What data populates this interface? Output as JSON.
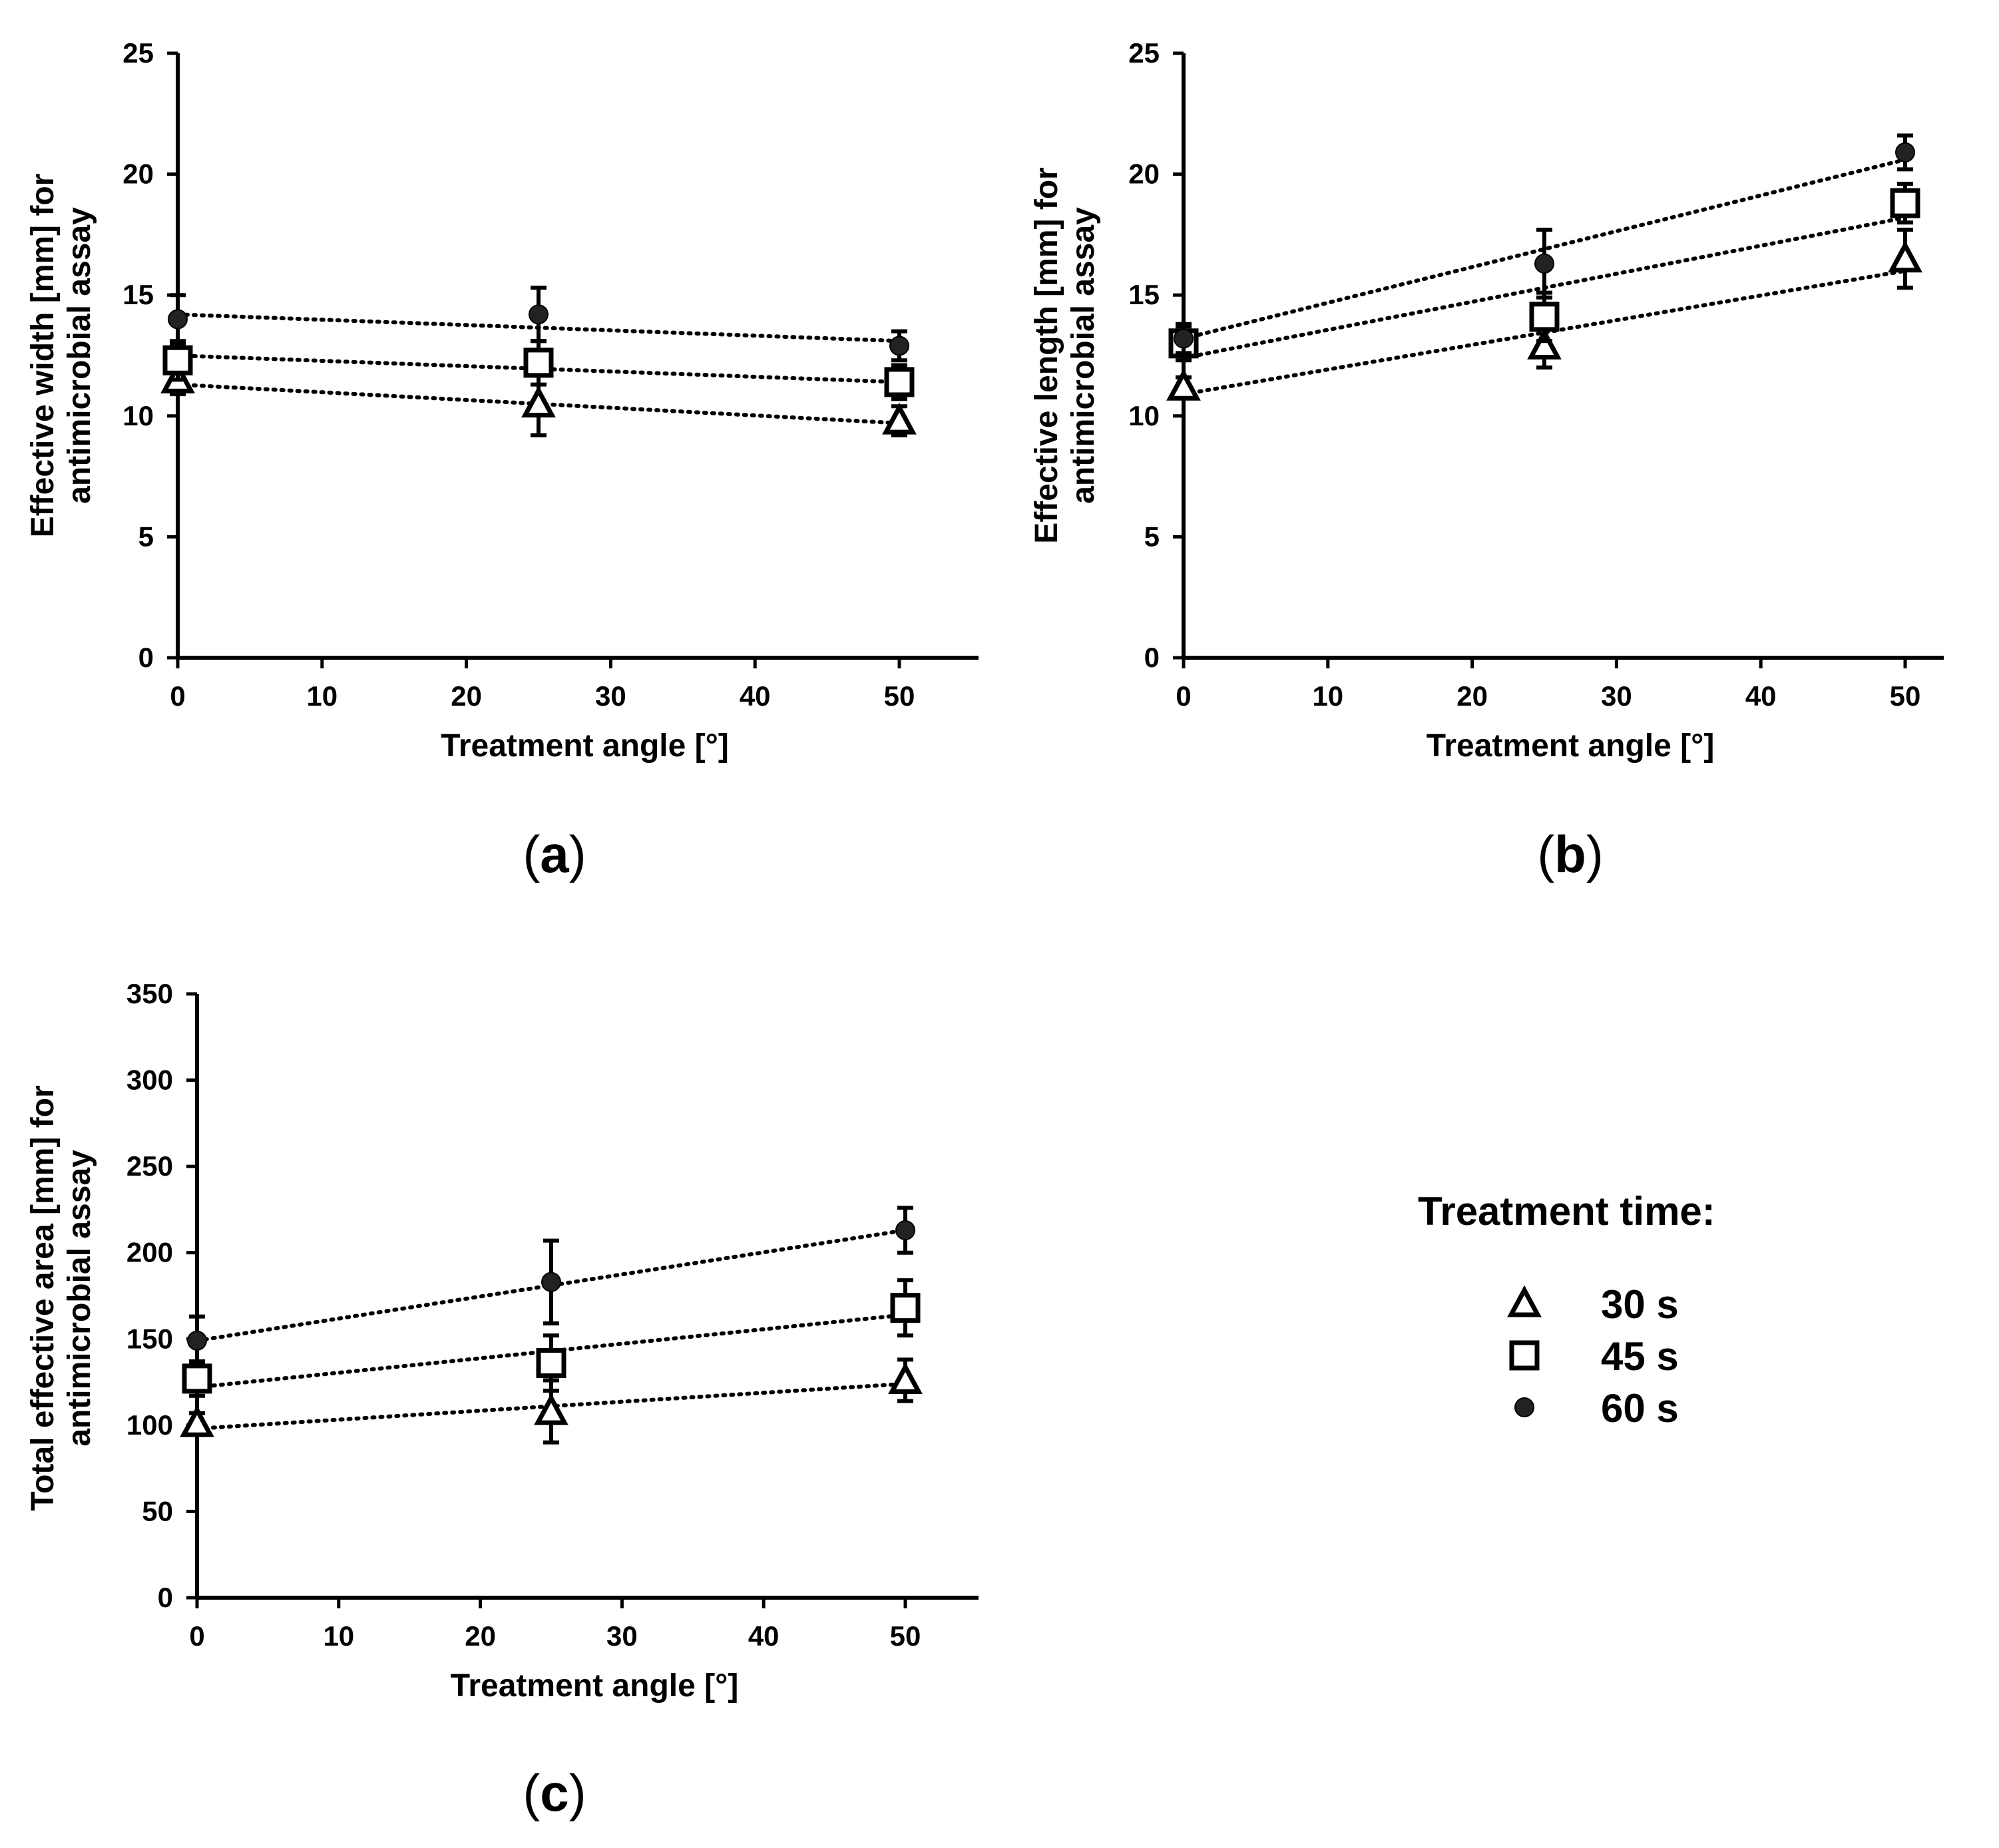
{
  "chart_data": [
    {
      "type": "scatter",
      "panel": "a",
      "panel_label_open": "(",
      "panel_label_letter": "a",
      "panel_label_close": ")",
      "xlabel": "Treatment angle [°]",
      "ylabel_line1": "Effective width [mm] for",
      "ylabel_line2": "antimicrobial assay",
      "xlim": [
        0,
        55
      ],
      "ylim": [
        0,
        25
      ],
      "xticks": [
        0,
        10,
        20,
        30,
        40,
        50
      ],
      "yticks": [
        0,
        5,
        10,
        15,
        20,
        25
      ],
      "series": [
        {
          "name": "30 s",
          "marker": "triangle",
          "x": [
            0,
            25,
            50
          ],
          "y": [
            11.5,
            10.5,
            9.8
          ],
          "err": [
            0.6,
            1.3,
            0.6
          ],
          "trend": [
            11.3,
            9.7
          ]
        },
        {
          "name": "45 s",
          "marker": "square",
          "x": [
            0,
            25,
            50
          ],
          "y": [
            12.3,
            12.2,
            11.4
          ],
          "err": [
            0.8,
            0.9,
            0.7
          ],
          "trend": [
            12.5,
            11.4
          ]
        },
        {
          "name": "60 s",
          "marker": "circle",
          "x": [
            0,
            25,
            50
          ],
          "y": [
            14.0,
            14.2,
            12.9
          ],
          "err": [
            1.0,
            1.1,
            0.6
          ],
          "trend": [
            14.2,
            13.1
          ]
        }
      ]
    },
    {
      "type": "scatter",
      "panel": "b",
      "panel_label_open": "(",
      "panel_label_letter": "b",
      "panel_label_close": ")",
      "xlabel": "Treatment angle [°]",
      "ylabel_line1": "Effective length [mm] for",
      "ylabel_line2": "antimicrobial assay",
      "xlim": [
        0,
        55
      ],
      "ylim": [
        0,
        25
      ],
      "xticks": [
        0,
        10,
        20,
        30,
        40,
        50
      ],
      "yticks": [
        0,
        5,
        10,
        15,
        20,
        25
      ],
      "series": [
        {
          "name": "30 s",
          "marker": "triangle",
          "x": [
            0,
            25,
            50
          ],
          "y": [
            11.2,
            12.9,
            16.5
          ],
          "err": [
            0.4,
            0.9,
            1.2
          ],
          "trend": [
            10.9,
            16.0
          ]
        },
        {
          "name": "45 s",
          "marker": "square",
          "x": [
            0,
            25,
            50
          ],
          "y": [
            13.0,
            14.1,
            18.8
          ],
          "err": [
            0.7,
            1.0,
            0.8
          ],
          "trend": [
            12.4,
            18.2
          ]
        },
        {
          "name": "60 s",
          "marker": "circle",
          "x": [
            0,
            25,
            50
          ],
          "y": [
            13.2,
            16.3,
            20.9
          ],
          "err": [
            0.6,
            1.4,
            0.7
          ],
          "trend": [
            13.2,
            20.6
          ]
        }
      ]
    },
    {
      "type": "scatter",
      "panel": "c",
      "panel_label_open": "(",
      "panel_label_letter": "c",
      "panel_label_close": ")",
      "xlabel": "Treatment angle [°]",
      "ylabel_line1": "Total effective area [mm] for",
      "ylabel_line2": "antimicrobial assay",
      "xlim": [
        0,
        55
      ],
      "ylim": [
        0,
        350
      ],
      "xticks": [
        0,
        10,
        20,
        30,
        40,
        50
      ],
      "yticks": [
        0,
        50,
        100,
        150,
        200,
        250,
        300,
        350
      ],
      "series": [
        {
          "name": "30 s",
          "marker": "triangle",
          "x": [
            0,
            25,
            50
          ],
          "y": [
            101,
            108,
            126
          ],
          "err": [
            6,
            18,
            12
          ],
          "trend": [
            98,
            124
          ]
        },
        {
          "name": "45 s",
          "marker": "square",
          "x": [
            0,
            25,
            50
          ],
          "y": [
            127,
            136,
            168
          ],
          "err": [
            10,
            16,
            16
          ],
          "trend": [
            122,
            164
          ]
        },
        {
          "name": "60 s",
          "marker": "circle",
          "x": [
            0,
            25,
            50
          ],
          "y": [
            149,
            183,
            213
          ],
          "err": [
            14,
            24,
            13
          ],
          "trend": [
            149,
            213
          ]
        }
      ]
    }
  ],
  "legend": {
    "title": "Treatment time:",
    "items": [
      {
        "marker": "triangle",
        "label": "30 s"
      },
      {
        "marker": "square",
        "label": "45 s"
      },
      {
        "marker": "circle",
        "label": "60 s"
      }
    ]
  },
  "colors": {
    "ink": "#000000",
    "fill_open": "#ffffff",
    "fill_solid": "#222222"
  }
}
